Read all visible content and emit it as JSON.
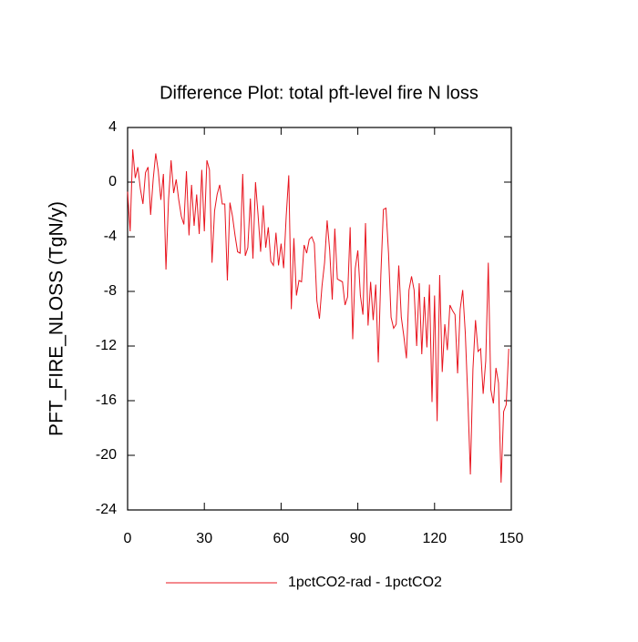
{
  "chart_data": {
    "type": "line",
    "title": "Difference Plot: total pft-level fire N loss",
    "y_label": "PFT_FIRE_NLOSS  (TgN/y)",
    "x": [
      0,
      1,
      2,
      3,
      4,
      5,
      6,
      7,
      8,
      9,
      10,
      11,
      12,
      13,
      14,
      15,
      16,
      17,
      18,
      19,
      20,
      21,
      22,
      23,
      24,
      25,
      26,
      27,
      28,
      29,
      30,
      31,
      32,
      33,
      34,
      35,
      36,
      37,
      38,
      39,
      40,
      41,
      42,
      43,
      44,
      45,
      46,
      47,
      48,
      49,
      50,
      51,
      52,
      53,
      54,
      55,
      56,
      57,
      58,
      59,
      60,
      61,
      62,
      63,
      64,
      65,
      66,
      67,
      68,
      69,
      70,
      71,
      72,
      73,
      74,
      75,
      76,
      77,
      78,
      79,
      80,
      81,
      82,
      83,
      84,
      85,
      86,
      87,
      88,
      89,
      90,
      91,
      92,
      93,
      94,
      95,
      96,
      97,
      98,
      99,
      100,
      101,
      102,
      103,
      104,
      105,
      106,
      107,
      108,
      109,
      110,
      111,
      112,
      113,
      114,
      115,
      116,
      117,
      118,
      119,
      120,
      121,
      122,
      123,
      124,
      125,
      126,
      127,
      128,
      129,
      130,
      131,
      132,
      133,
      134,
      135,
      136,
      137,
      138,
      139,
      140,
      141,
      142,
      143,
      144,
      145,
      146,
      147,
      148,
      149
    ],
    "series": [
      {
        "name": "1pctCO2-rad - 1pctCO2",
        "color": "#e8141e",
        "values": [
          -0.7,
          -3.6,
          2.4,
          0.3,
          1.1,
          -0.5,
          -1.6,
          0.7,
          1.1,
          -2.4,
          0.2,
          2.1,
          0.8,
          -1.3,
          0.6,
          -6.4,
          -1.3,
          1.6,
          -0.8,
          0.2,
          -1.3,
          -2.5,
          -3.1,
          0.8,
          -3.9,
          -0.2,
          -3.2,
          -0.9,
          -3.8,
          0.9,
          -3.6,
          1.6,
          0.9,
          -5.9,
          -2.1,
          -0.9,
          -0.2,
          -1.6,
          -1.6,
          -7.2,
          -1.5,
          -2.5,
          -3.9,
          -5.1,
          -5.2,
          0.6,
          -5.4,
          -4.8,
          -1.2,
          -5.6,
          0.0,
          -2.4,
          -5.1,
          -1.7,
          -4.8,
          -3.3,
          -5.8,
          -6.1,
          -3.7,
          -6.1,
          -4.5,
          -6.3,
          -2.5,
          0.5,
          -9.3,
          -4.1,
          -8.3,
          -7.2,
          -7.3,
          -4.6,
          -5.2,
          -4.2,
          -4.0,
          -4.5,
          -8.7,
          -10.0,
          -7.6,
          -5.9,
          -2.8,
          -5.0,
          -8.6,
          -3.4,
          -7.1,
          -7.2,
          -7.3,
          -9.0,
          -8.4,
          -3.3,
          -11.5,
          -6.3,
          -5.0,
          -8.3,
          -9.7,
          -3.0,
          -10.5,
          -7.3,
          -10.1,
          -7.5,
          -13.2,
          -6.8,
          -2.0,
          -1.9,
          -5.2,
          -9.9,
          -10.7,
          -10.4,
          -6.1,
          -9.9,
          -11.3,
          -12.9,
          -7.9,
          -6.9,
          -7.9,
          -12.0,
          -7.4,
          -12.6,
          -8.4,
          -12.1,
          -7.5,
          -16.1,
          -8.3,
          -17.5,
          -6.8,
          -13.9,
          -10.4,
          -12.3,
          -9.0,
          -9.4,
          -9.7,
          -14.0,
          -9.3,
          -7.9,
          -11.0,
          -15.8,
          -21.4,
          -13.7,
          -10.1,
          -12.4,
          -12.2,
          -15.5,
          -13.1,
          -5.9,
          -15.2,
          -16.2,
          -13.6,
          -14.7,
          -22.0,
          -16.8,
          -16.3,
          -12.2
        ]
      }
    ],
    "xlim": [
      0,
      150
    ],
    "xticks": [
      0,
      30,
      60,
      90,
      120,
      150
    ],
    "ylim": [
      -24,
      4
    ],
    "yticks": [
      4,
      0,
      -4,
      -8,
      -12,
      -16,
      -20,
      -24
    ]
  }
}
